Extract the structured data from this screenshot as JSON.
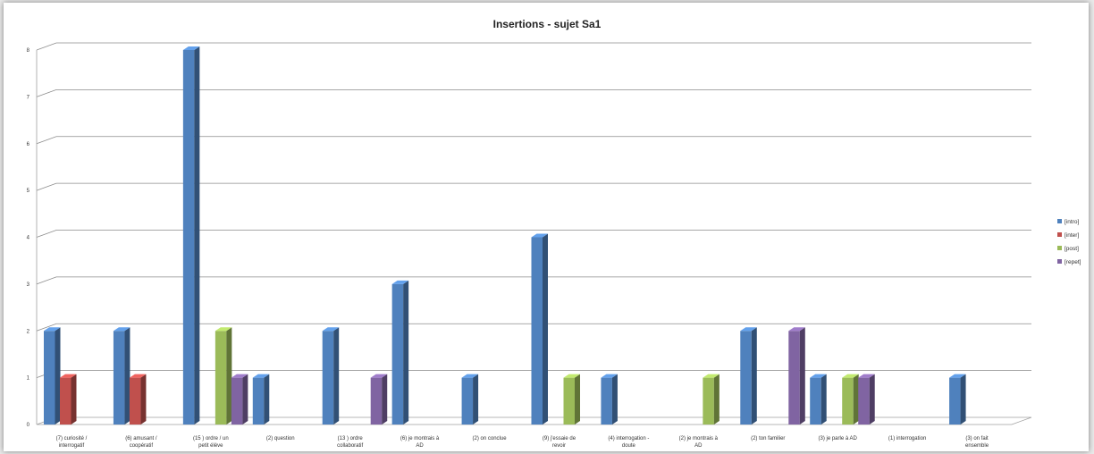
{
  "chart_data": {
    "type": "bar",
    "title": "Insertions - sujet Sa1",
    "ylim": [
      0,
      8
    ],
    "y_ticks": [
      "0",
      "1",
      "2",
      "3",
      "4",
      "5",
      "6",
      "7",
      "8"
    ],
    "grid": true,
    "legend_position": "right",
    "categories": [
      [
        "(7) curiosité /",
        "interrogatif"
      ],
      [
        "(6) amusant /",
        "coopératif"
      ],
      [
        "(15 ) ordre / un",
        "petit élève"
      ],
      [
        "(2) question"
      ],
      [
        "(13 ) ordre",
        "collaboratif"
      ],
      [
        "(6) je montrais à",
        "AD"
      ],
      [
        "(2) on conclue"
      ],
      [
        "(9) j'essaie de",
        "revoir"
      ],
      [
        "(4) interrogation -",
        "doute"
      ],
      [
        "(2) je montrais à",
        "AD"
      ],
      [
        "(2) ton familier"
      ],
      [
        "(3) je parle à AD"
      ],
      [
        "(1) interrogation"
      ],
      [
        "(3) on fait",
        "ensemble"
      ]
    ],
    "series": [
      {
        "name": "[intro]",
        "color": "#4f81bd",
        "values": [
          2,
          2,
          8,
          1,
          2,
          3,
          1,
          4,
          1,
          0,
          2,
          1,
          0,
          1
        ]
      },
      {
        "name": "[inter]",
        "color": "#c0504d",
        "values": [
          1,
          1,
          0,
          0,
          0,
          0,
          0,
          0,
          0,
          0,
          0,
          0,
          0,
          0
        ]
      },
      {
        "name": "[post]",
        "color": "#9bbb59",
        "values": [
          0,
          0,
          2,
          0,
          0,
          0,
          0,
          1,
          0,
          1,
          0,
          1,
          0,
          0
        ]
      },
      {
        "name": "[repet]",
        "color": "#8064a2",
        "values": [
          0,
          0,
          1,
          0,
          1,
          0,
          0,
          0,
          0,
          0,
          2,
          1,
          0,
          0
        ]
      }
    ]
  }
}
